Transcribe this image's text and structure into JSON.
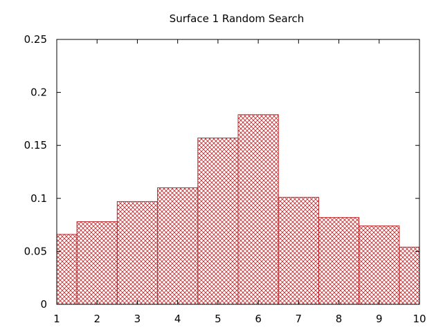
{
  "colors": {
    "bar_stroke": "#c0282b",
    "hatch": "#c0282b",
    "frame": "#000000",
    "background": "#ffffff"
  },
  "chart_data": {
    "type": "bar",
    "title": "Surface 1 Random Search",
    "xlabel": "",
    "ylabel": "",
    "xlim": [
      1,
      10
    ],
    "ylim": [
      0,
      0.25
    ],
    "grid": false,
    "legend": "none",
    "fill": "crosshatch",
    "x_ticks": [
      "1",
      "2",
      "3",
      "4",
      "5",
      "6",
      "7",
      "8",
      "9",
      "10"
    ],
    "y_ticks": [
      "0",
      "0.05",
      "0.1",
      "0.15",
      "0.2",
      "0.25"
    ],
    "bars": [
      {
        "x": 1,
        "value": 0.066
      },
      {
        "x": 2,
        "value": 0.078
      },
      {
        "x": 3,
        "value": 0.097
      },
      {
        "x": 4,
        "value": 0.11
      },
      {
        "x": 5,
        "value": 0.157
      },
      {
        "x": 6,
        "value": 0.179
      },
      {
        "x": 7,
        "value": 0.101
      },
      {
        "x": 8,
        "value": 0.082
      },
      {
        "x": 9,
        "value": 0.074
      },
      {
        "x": 10,
        "value": 0.054
      }
    ]
  }
}
